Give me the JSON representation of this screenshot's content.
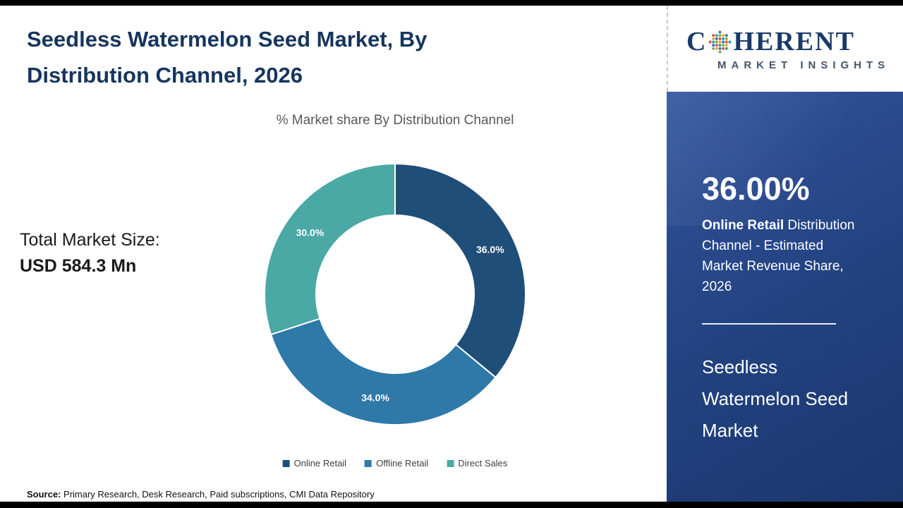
{
  "page": {
    "title_line1": "Seedless Watermelon Seed Market, By",
    "title_line2": "Distribution Channel, 2026",
    "total_market_label": "Total Market Size:",
    "total_market_value": "USD 584.3 Mn",
    "source_label": "Source:",
    "source_text": " Primary Research, Desk Research, Paid subscriptions, CMI Data Repository"
  },
  "logo": {
    "line1_prefix": "C",
    "line1_suffix": "HERENT",
    "line2": "MARKET INSIGHTS"
  },
  "sidebar": {
    "stat_value": "36.00%",
    "stat_bold": "Online Retail",
    "stat_rest": " Distribution Channel - Estimated Market Revenue Share, 2026",
    "market_name": "Seedless Watermelon Seed Market"
  },
  "chart_data": {
    "type": "pie",
    "donut": true,
    "title": "% Market share By Distribution Channel",
    "categories": [
      "Online Retail",
      "Offline Retail",
      "Direct Sales"
    ],
    "values": [
      36.0,
      34.0,
      30.0
    ],
    "labels": [
      "36.0%",
      "34.0%",
      "30.0%"
    ],
    "colors": [
      "#1f4e79",
      "#2e79a7",
      "#4aa8a5"
    ],
    "start_angle_deg": 0,
    "legend_position": "bottom"
  }
}
